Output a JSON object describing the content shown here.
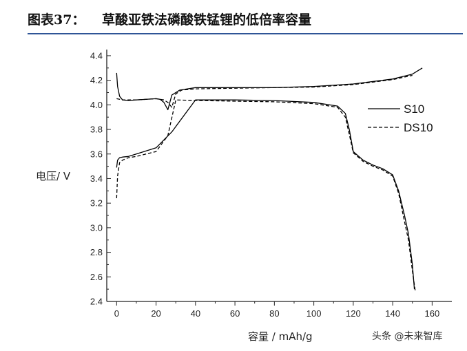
{
  "figure": {
    "number_label": "图表37：",
    "title": "草酸亚铁法磷酸铁锰锂的低倍率容量"
  },
  "watermark": "头条 @未来智库",
  "chart_data": {
    "type": "line",
    "title": "",
    "xlabel": "容量 / mAh/g",
    "ylabel": "电压/ V",
    "xlim": [
      -5,
      170
    ],
    "ylim": [
      2.4,
      4.45
    ],
    "xticks": [
      0,
      20,
      40,
      60,
      80,
      100,
      120,
      140,
      160
    ],
    "yticks": [
      2.4,
      2.6,
      2.8,
      3.0,
      3.2,
      3.4,
      3.6,
      3.8,
      4.0,
      4.2,
      4.4
    ],
    "ytick_labels": [
      "2.4",
      "2.6",
      "2.8",
      "3.0",
      "3.2",
      "3.4",
      "3.6",
      "3.8",
      "4.0",
      "4.2",
      "4.4"
    ],
    "grid": false,
    "legend_position": "right",
    "series": [
      {
        "name": "S10",
        "style": "solid",
        "color": "#000000",
        "curves": [
          {
            "x": [
              0,
              0.5,
              1.5,
              3,
              6,
              10,
              20,
              28,
              40,
              60,
              80,
              100,
              112,
              116,
              118,
              120,
              125,
              130,
              135,
              140,
              143,
              146,
              148,
              150,
              151
            ],
            "y": [
              3.49,
              3.55,
              3.57,
              3.575,
              3.58,
              3.6,
              3.65,
              3.78,
              4.04,
              4.04,
              4.035,
              4.02,
              3.99,
              3.93,
              3.8,
              3.62,
              3.55,
              3.51,
              3.48,
              3.43,
              3.3,
              3.1,
              2.95,
              2.7,
              2.5
            ]
          },
          {
            "x": [
              0,
              0.5,
              1.5,
              3,
              6,
              10,
              20,
              22,
              24,
              26,
              28,
              32,
              40,
              60,
              80,
              100,
              120,
              140,
              150,
              155
            ],
            "y": [
              4.26,
              4.15,
              4.07,
              4.04,
              4.035,
              4.04,
              4.05,
              4.045,
              4.02,
              3.96,
              4.08,
              4.12,
              4.14,
              4.14,
              4.14,
              4.15,
              4.17,
              4.21,
              4.25,
              4.3
            ]
          }
        ]
      },
      {
        "name": "DS10",
        "style": "dashed",
        "color": "#000000",
        "curves": [
          {
            "x": [
              0,
              0.5,
              1.5,
              3,
              6,
              10,
              20,
              26,
              30,
              42,
              60,
              80,
              100,
              112,
              116,
              118,
              120,
              125,
              130,
              135,
              140,
              143,
              146,
              148,
              150,
              151.5
            ],
            "y": [
              3.24,
              3.42,
              3.53,
              3.55,
              3.57,
              3.58,
              3.62,
              3.75,
              4.04,
              4.035,
              4.03,
              4.025,
              4.01,
              3.98,
              3.9,
              3.76,
              3.61,
              3.54,
              3.5,
              3.47,
              3.42,
              3.28,
              3.05,
              2.9,
              2.65,
              2.48
            ]
          },
          {
            "x": [
              0,
              3,
              10,
              20,
              24,
              26,
              28,
              30,
              33,
              40,
              60,
              80,
              100,
              120,
              140,
              150
            ],
            "y": [
              4.05,
              4.04,
              4.04,
              4.05,
              4.04,
              4.02,
              3.98,
              4.09,
              4.12,
              4.13,
              4.135,
              4.14,
              4.145,
              4.165,
              4.205,
              4.24
            ]
          }
        ]
      }
    ]
  }
}
